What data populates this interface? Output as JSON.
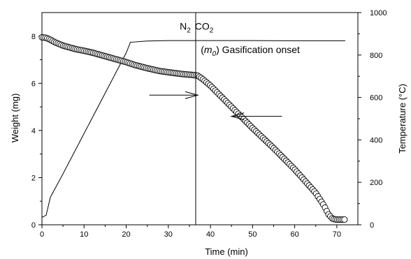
{
  "chart_data": {
    "type": "line",
    "xlabel": "Time (min)",
    "ylabel": "Weight (mg)",
    "y2label": "Temperature (°C)",
    "xlim": [
      0,
      75
    ],
    "ylim": [
      0,
      9
    ],
    "y2lim": [
      0,
      1000
    ],
    "x_ticks": [
      0,
      10,
      20,
      30,
      40,
      50,
      60,
      70
    ],
    "y_ticks": [
      0,
      2,
      4,
      6,
      8
    ],
    "y2_ticks": [
      0,
      200,
      400,
      600,
      800,
      1000
    ],
    "x_tick_labels": [
      "0",
      "10",
      "20",
      "30",
      "40",
      "50",
      "60",
      "70"
    ],
    "y_tick_labels": [
      "0",
      "2",
      "4",
      "6",
      "8"
    ],
    "y2_tick_labels": [
      "0",
      "200",
      "400",
      "600",
      "800",
      "1000"
    ],
    "grid": false,
    "series": [
      {
        "axis": "left",
        "style": "open-circle-markers",
        "x": [
          0,
          1,
          2,
          3,
          5,
          8,
          10,
          12,
          15,
          18,
          20,
          22,
          25,
          28,
          30,
          33,
          36,
          37,
          38,
          40,
          45,
          50,
          55,
          60,
          65,
          67,
          68,
          69,
          70,
          71,
          72
        ],
        "values": [
          7.95,
          7.93,
          7.85,
          7.75,
          7.6,
          7.45,
          7.38,
          7.3,
          7.15,
          7.0,
          6.9,
          6.78,
          6.64,
          6.52,
          6.47,
          6.4,
          6.35,
          6.32,
          6.2,
          5.9,
          5.0,
          4.1,
          3.25,
          2.35,
          1.35,
          0.8,
          0.45,
          0.25,
          0.22,
          0.22,
          0.22
        ]
      },
      {
        "axis": "right",
        "style": "solid-line",
        "x": [
          0,
          1,
          2,
          5,
          10,
          15,
          20,
          21,
          25,
          30,
          40,
          50,
          60,
          70,
          72
        ],
        "values": [
          35,
          45,
          130,
          240,
          430,
          620,
          810,
          860,
          866,
          868,
          868,
          868,
          867,
          867,
          867
        ]
      }
    ],
    "annotations": [
      {
        "text": "N",
        "sub": "2",
        "x": 34,
        "y_right": 920
      },
      {
        "text": "CO",
        "sub": "2",
        "x": 38.5,
        "y_right": 920
      },
      {
        "text_prefix": "(",
        "text_italic": "m",
        "text_sub": "0",
        "text_suffix": ") Gasification onset",
        "x": 37.7,
        "y_right": 810
      },
      {
        "type": "vertical-line",
        "x": 36.5,
        "y_range": [
          0,
          9
        ]
      },
      {
        "type": "arrow",
        "direction": "right",
        "x_from": 25.5,
        "x_to": 37,
        "y": 5.5
      },
      {
        "type": "arrow",
        "direction": "left",
        "x_from": 57,
        "x_to": 45,
        "y": 4.6
      }
    ]
  }
}
